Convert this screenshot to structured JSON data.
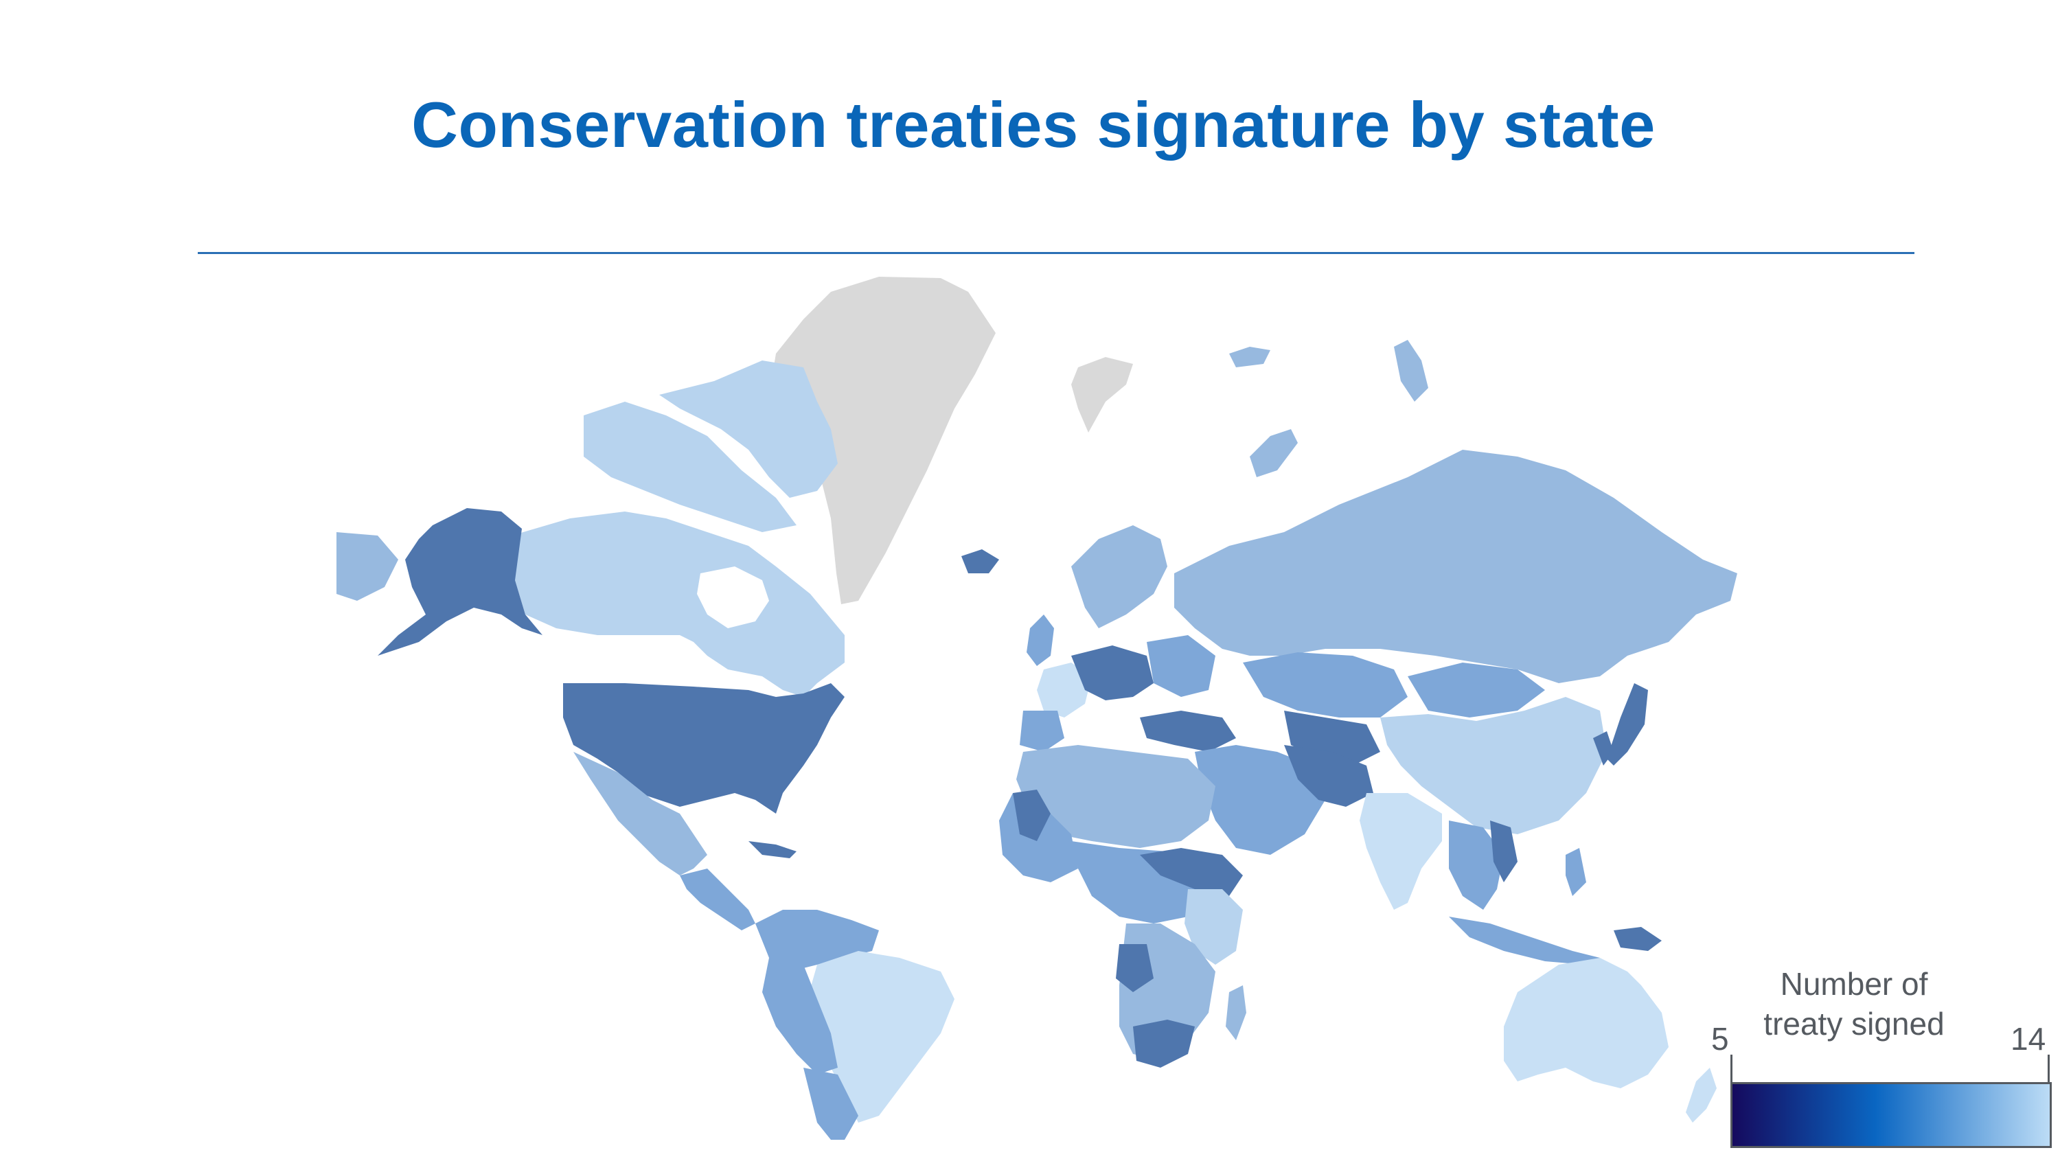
{
  "title": "Conservation treaties signature by state",
  "legend": {
    "title": "Number of treaty signed",
    "min": "5",
    "max": "14",
    "color_scale": [
      "#150a5e",
      "#0a66c2",
      "#bcdcf6"
    ]
  },
  "colors": {
    "title": "#0a66b8",
    "no_data": "#d9d9d9",
    "dark": "#4f76ad",
    "mid": "#7ea7d8",
    "light": "#97b9df",
    "pale": "#c8e0f5"
  }
}
